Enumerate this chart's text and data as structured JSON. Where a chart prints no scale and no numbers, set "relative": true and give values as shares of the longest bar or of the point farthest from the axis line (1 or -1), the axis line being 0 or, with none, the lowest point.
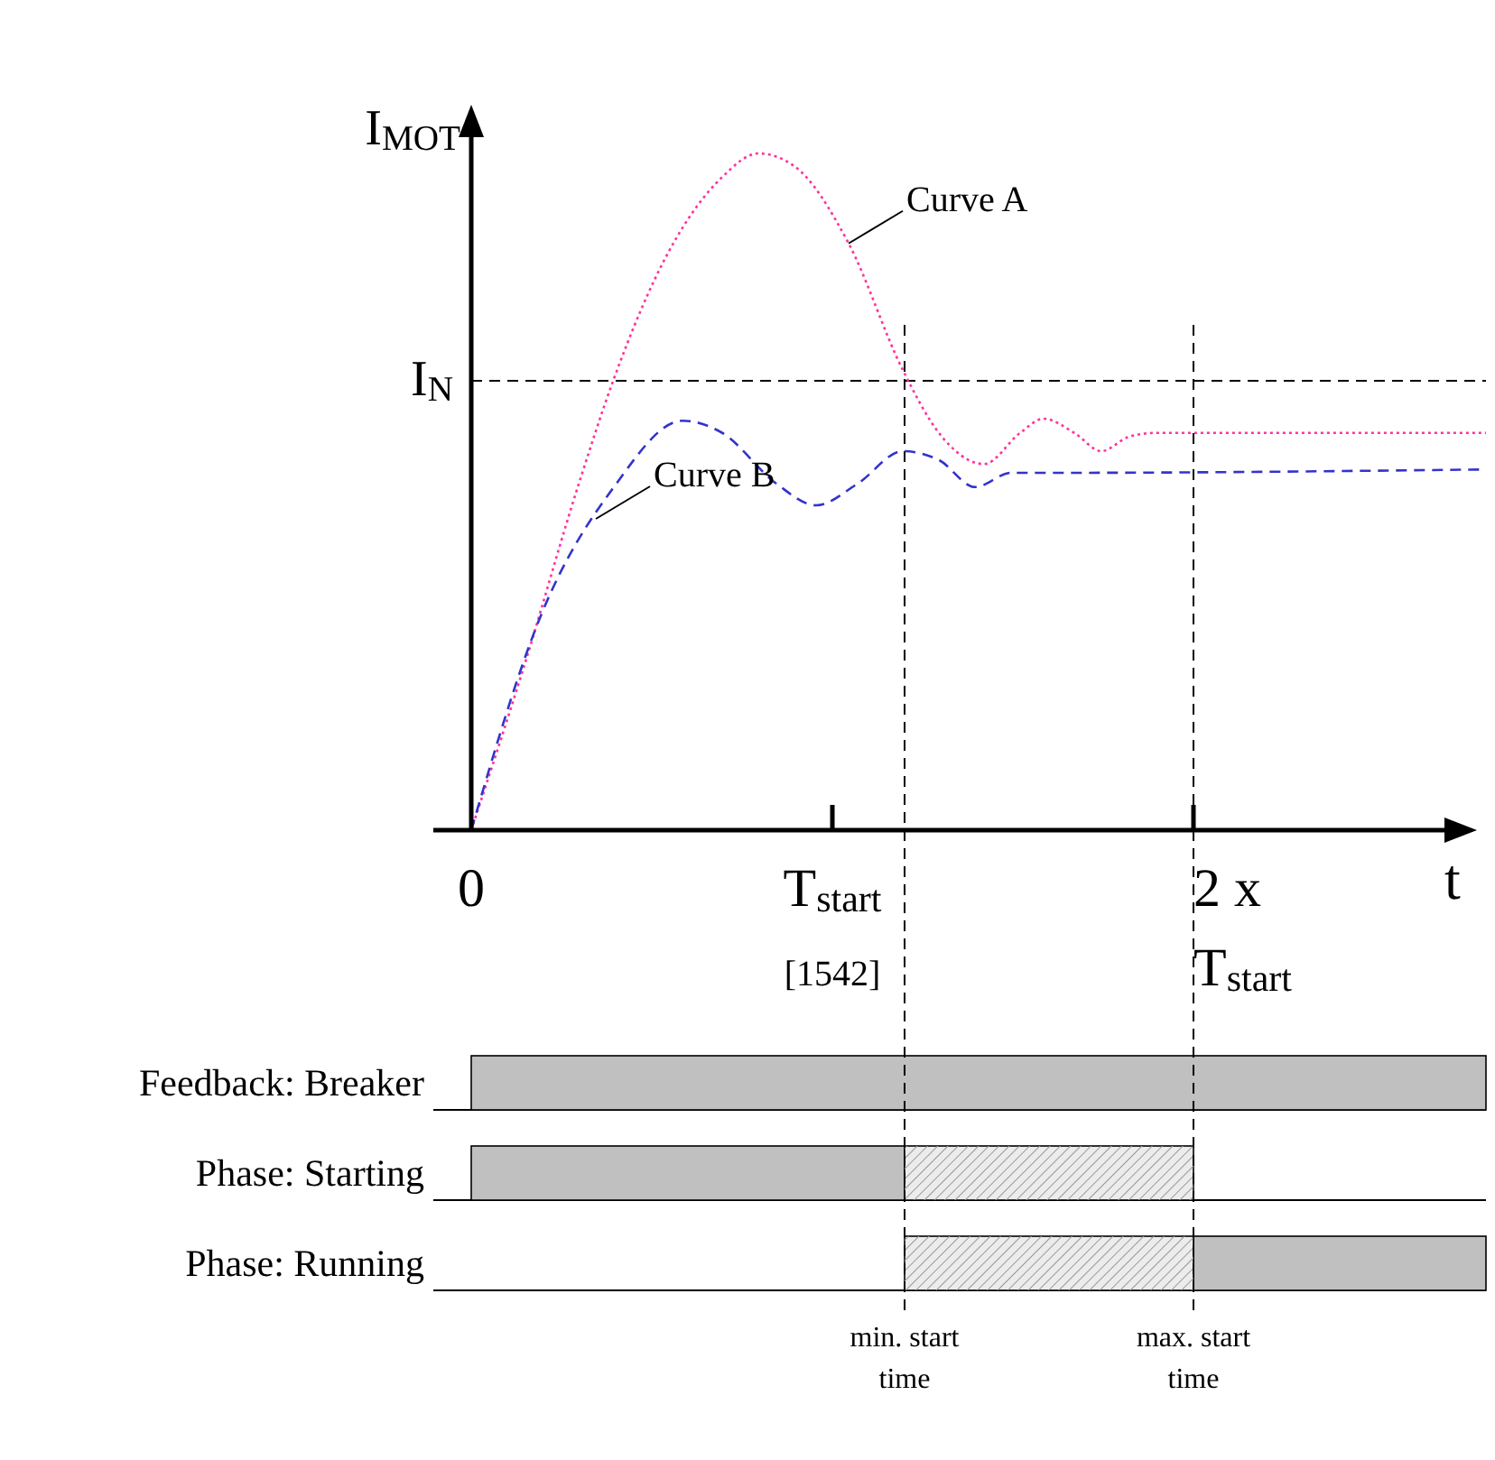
{
  "chart_data": [
    {
      "type": "line",
      "relative": true,
      "ylabel": "I$_{MOT}$",
      "xlabel": "t",
      "xlim": [
        0,
        2.81
      ],
      "xticks": [
        {
          "value": 0,
          "label": "0"
        },
        {
          "value": 1,
          "label": "T$_{start}$"
        },
        {
          "value": 2,
          "label": "2 x\nT$_{start}$"
        }
      ],
      "grid": false,
      "legend": false,
      "marker": "none",
      "series": [
        {
          "color": "#ff3399",
          "line_style": "dotted",
          "x": [
            0,
            0.145,
            0.295,
            0.395,
            0.545,
            0.695,
            0.795,
            0.895,
            1.045,
            1.195,
            1.295,
            1.42,
            1.52,
            1.585,
            1.67,
            1.745,
            1.82,
            1.895,
            2.81
          ],
          "values": [
            0,
            0.24,
            0.507,
            0.667,
            0.853,
            0.965,
            1,
            0.981,
            0.867,
            0.68,
            0.587,
            0.541,
            0.587,
            0.608,
            0.587,
            0.56,
            0.581,
            0.587,
            0.587
          ]
        },
        {
          "color": "#3333cc",
          "line_style": "dashed",
          "x": [
            0,
            0.195,
            0.395,
            0.585,
            0.695,
            0.845,
            0.955,
            1.07,
            1.195,
            1.295,
            1.395,
            1.495,
            1.595,
            2.81
          ],
          "values": [
            0,
            0.32,
            0.507,
            0.605,
            0.587,
            0.512,
            0.48,
            0.512,
            0.56,
            0.547,
            0.507,
            0.528,
            0.528,
            0.533
          ]
        }
      ],
      "ref_lines": [
        {
          "axis": "y",
          "value": 0.664,
          "label": "I$_{N}$",
          "line_style": "dashed"
        },
        {
          "axis": "x",
          "value": 1.2,
          "line_style": "dashed"
        },
        {
          "axis": "x",
          "value": 2,
          "line_style": "dashed"
        }
      ],
      "annotations": [
        {
          "text": "Curve A",
          "x": 1.045,
          "y": 0.867
        },
        {
          "text": "Curve B",
          "x": 0.345,
          "y": 0.46
        },
        "[1542]"
      ]
    },
    {
      "type": "bar",
      "orientation": "horizontal",
      "tick_labels": "y",
      "xlim": [
        0,
        2.81
      ],
      "categories": [
        "Feedback: Breaker",
        "Phase: Starting",
        "Phase: Running"
      ],
      "series": [
        {
          "color": "#c0c0c0",
          "base": [
            0,
            0,
            2
          ],
          "values": [
            2.81,
            1.2,
            0.81
          ]
        },
        {
          "color": "#ececec",
          "base": [
            null,
            1.2,
            1.2
          ],
          "values": [
            null,
            0.8,
            0.8
          ]
        }
      ],
      "ref_lines": [
        {
          "axis": "x",
          "value": 1.2,
          "label": "min. start time",
          "line_style": "dashed"
        },
        {
          "axis": "x",
          "value": 2,
          "label": "max. start time",
          "line_style": "dashed"
        }
      ]
    }
  ]
}
